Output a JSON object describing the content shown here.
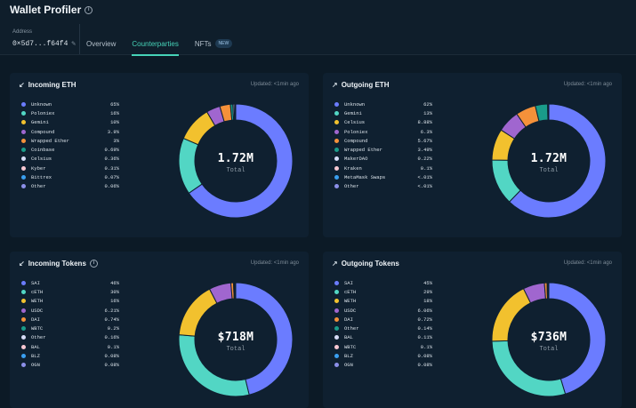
{
  "header": {
    "title": "Wallet Profiler",
    "address_label": "Address",
    "address_value": "0×5d7...f64f4",
    "tabs": [
      {
        "label": "Overview"
      },
      {
        "label": "Counterparties"
      },
      {
        "label": "NFTs",
        "badge": "NEW"
      }
    ]
  },
  "cards": [
    {
      "title": "Incoming ETH",
      "arrow": "↙",
      "info": false,
      "updated": "Updated: <1min ago",
      "center_value": "1.72M",
      "center_label": "Total",
      "legend": [
        {
          "name": "Unknown",
          "pct": "65%",
          "color": "#6b7cff"
        },
        {
          "name": "Poloniex",
          "pct": "16%",
          "color": "#52d6c4"
        },
        {
          "name": "Gemini",
          "pct": "10%",
          "color": "#f2c12e"
        },
        {
          "name": "Compound",
          "pct": "3.9%",
          "color": "#a066cf"
        },
        {
          "name": "Wrapped Ether",
          "pct": "3%",
          "color": "#f5913a"
        },
        {
          "name": "Coinbase",
          "pct": "0.69%",
          "color": "#1a9c8a"
        },
        {
          "name": "Celsius",
          "pct": "0.36%",
          "color": "#d6dcf7"
        },
        {
          "name": "Kyber",
          "pct": "0.31%",
          "color": "#f7c7d2"
        },
        {
          "name": "Bittrex",
          "pct": "0.07%",
          "color": "#3a9ff0"
        },
        {
          "name": "Other",
          "pct": "0.06%",
          "color": "#8c8fe8"
        }
      ],
      "slices": [
        65,
        16,
        10,
        3.9,
        3,
        0.69,
        0.36,
        0.31,
        0.07,
        0.06
      ]
    },
    {
      "title": "Outgoing ETH",
      "arrow": "↗",
      "info": false,
      "updated": "Updated: <1min ago",
      "center_value": "1.72M",
      "center_label": "Total",
      "legend": [
        {
          "name": "Unknown",
          "pct": "62%",
          "color": "#6b7cff"
        },
        {
          "name": "Gemini",
          "pct": "13%",
          "color": "#52d6c4"
        },
        {
          "name": "Celsius",
          "pct": "8.88%",
          "color": "#f2c12e"
        },
        {
          "name": "Poloniex",
          "pct": "6.3%",
          "color": "#a066cf"
        },
        {
          "name": "Compound",
          "pct": "5.67%",
          "color": "#f5913a"
        },
        {
          "name": "Wrapped Ether",
          "pct": "3.49%",
          "color": "#1a9c8a"
        },
        {
          "name": "MakerDAO",
          "pct": "0.22%",
          "color": "#d6dcf7"
        },
        {
          "name": "Kraken",
          "pct": "0.1%",
          "color": "#f7c7d2"
        },
        {
          "name": "MetaMask Swaps",
          "pct": "<.01%",
          "color": "#3a9ff0"
        },
        {
          "name": "Other",
          "pct": "<.01%",
          "color": "#8c8fe8"
        }
      ],
      "slices": [
        62,
        13,
        8.88,
        6.3,
        5.67,
        3.49,
        0.22,
        0.1,
        0.01,
        0.01
      ]
    },
    {
      "title": "Incoming Tokens",
      "arrow": "↙",
      "info": true,
      "updated": "Updated: <1min ago",
      "center_value": "$718M",
      "center_label": "Total",
      "legend": [
        {
          "name": "SAI",
          "pct": "46%",
          "color": "#6b7cff"
        },
        {
          "name": "cETH",
          "pct": "30%",
          "color": "#52d6c4"
        },
        {
          "name": "WETH",
          "pct": "16%",
          "color": "#f2c12e"
        },
        {
          "name": "USDC",
          "pct": "6.21%",
          "color": "#a066cf"
        },
        {
          "name": "DAI",
          "pct": "0.74%",
          "color": "#f5913a"
        },
        {
          "name": "WBTC",
          "pct": "0.2%",
          "color": "#1a9c8a"
        },
        {
          "name": "Other",
          "pct": "0.16%",
          "color": "#d6dcf7"
        },
        {
          "name": "BAL",
          "pct": "0.1%",
          "color": "#f7c7d2"
        },
        {
          "name": "BLZ",
          "pct": "0.08%",
          "color": "#3a9ff0"
        },
        {
          "name": "OGN",
          "pct": "0.08%",
          "color": "#8c8fe8"
        }
      ],
      "slices": [
        46,
        30,
        16,
        6.21,
        0.74,
        0.2,
        0.16,
        0.1,
        0.08,
        0.08
      ]
    },
    {
      "title": "Outgoing Tokens",
      "arrow": "↗",
      "info": false,
      "updated": "Updated: <1min ago",
      "center_value": "$736M",
      "center_label": "Total",
      "legend": [
        {
          "name": "SAI",
          "pct": "45%",
          "color": "#6b7cff"
        },
        {
          "name": "cETH",
          "pct": "29%",
          "color": "#52d6c4"
        },
        {
          "name": "WETH",
          "pct": "18%",
          "color": "#f2c12e"
        },
        {
          "name": "USDC",
          "pct": "6.06%",
          "color": "#a066cf"
        },
        {
          "name": "DAI",
          "pct": "0.72%",
          "color": "#f5913a"
        },
        {
          "name": "Other",
          "pct": "0.14%",
          "color": "#1a9c8a"
        },
        {
          "name": "BAL",
          "pct": "0.11%",
          "color": "#d6dcf7"
        },
        {
          "name": "WBTC",
          "pct": "0.1%",
          "color": "#f7c7d2"
        },
        {
          "name": "BLZ",
          "pct": "0.08%",
          "color": "#3a9ff0"
        },
        {
          "name": "OGN",
          "pct": "0.08%",
          "color": "#8c8fe8"
        }
      ],
      "slices": [
        45,
        29,
        18,
        6.06,
        0.72,
        0.14,
        0.11,
        0.1,
        0.08,
        0.08
      ]
    }
  ]
}
